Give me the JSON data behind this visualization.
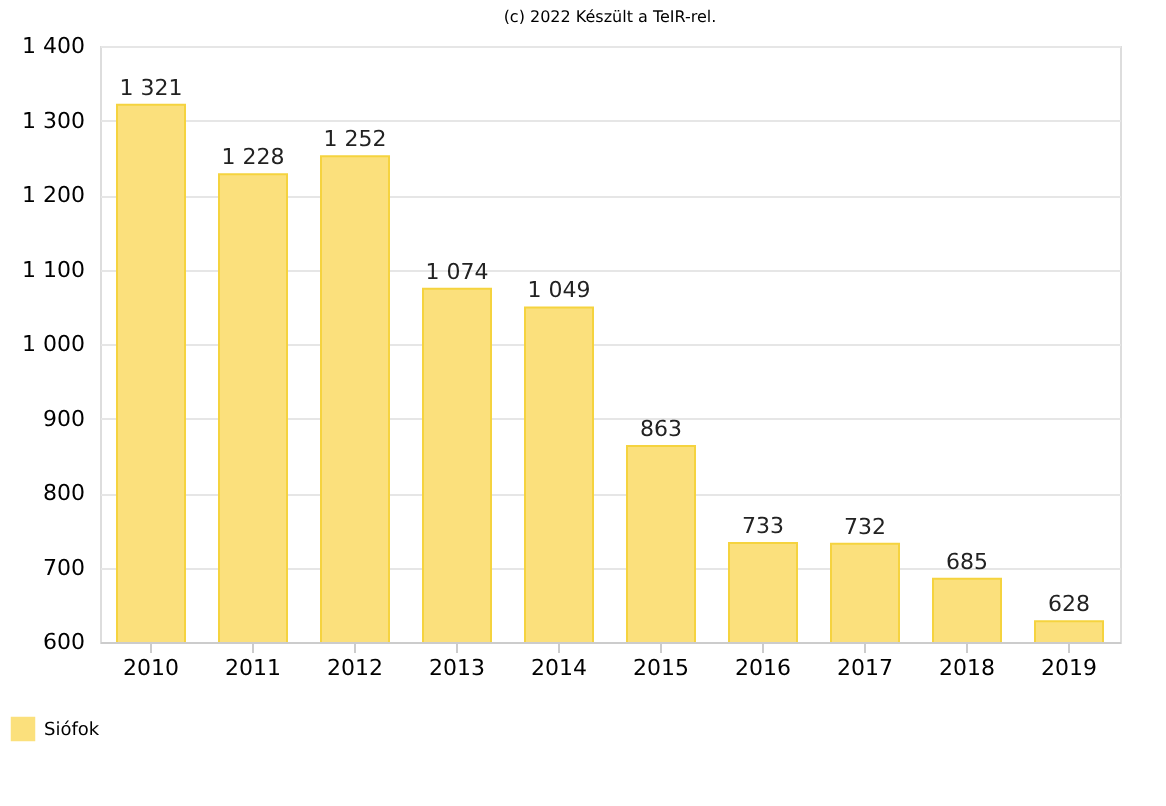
{
  "chart_data": {
    "type": "bar",
    "title": "(c) 2022 Készült a TeIR-rel.",
    "categories": [
      "2010",
      "2011",
      "2012",
      "2013",
      "2014",
      "2015",
      "2016",
      "2017",
      "2018",
      "2019"
    ],
    "series": [
      {
        "name": "Siófok",
        "color": "#fbe07c",
        "values": [
          1321,
          1228,
          1252,
          1074,
          1049,
          863,
          733,
          732,
          685,
          628
        ],
        "value_labels": [
          "1 321",
          "1 228",
          "1 252",
          "1 074",
          "1 049",
          "863",
          "733",
          "732",
          "685",
          "628"
        ]
      }
    ],
    "ylim": [
      600,
      1400
    ],
    "yticks": [
      {
        "value": 600,
        "label": "600"
      },
      {
        "value": 700,
        "label": "700"
      },
      {
        "value": 800,
        "label": "800"
      },
      {
        "value": 900,
        "label": "900"
      },
      {
        "value": 1000,
        "label": "1 000"
      },
      {
        "value": 1100,
        "label": "1 100"
      },
      {
        "value": 1200,
        "label": "1 200"
      },
      {
        "value": 1300,
        "label": "1 300"
      },
      {
        "value": 1400,
        "label": "1 400"
      }
    ],
    "grid": "y",
    "legend": "bottom left"
  }
}
